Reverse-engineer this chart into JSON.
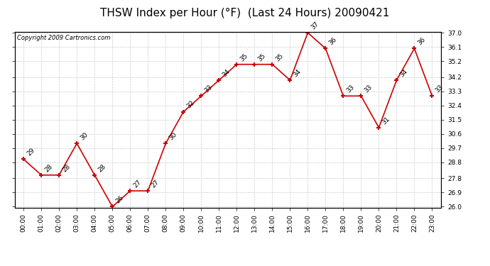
{
  "title": "THSW Index per Hour (°F)  (Last 24 Hours) 20090421",
  "copyright": "Copyright 2009 Cartronics.com",
  "hours": [
    "00:00",
    "01:00",
    "02:00",
    "03:00",
    "04:00",
    "05:00",
    "06:00",
    "07:00",
    "08:00",
    "09:00",
    "10:00",
    "11:00",
    "12:00",
    "13:00",
    "14:00",
    "15:00",
    "16:00",
    "17:00",
    "18:00",
    "19:00",
    "20:00",
    "21:00",
    "22:00",
    "23:00"
  ],
  "values": [
    29,
    28,
    28,
    30,
    28,
    26,
    27,
    27,
    30,
    32,
    33,
    34,
    35,
    35,
    35,
    34,
    37,
    36,
    33,
    33,
    31,
    34,
    36,
    33
  ],
  "line_color": "#cc0000",
  "marker_color": "#cc0000",
  "bg_color": "#ffffff",
  "grid_color": "#cccccc",
  "yticks": [
    26.0,
    26.9,
    27.8,
    28.8,
    29.7,
    30.6,
    31.5,
    32.4,
    33.3,
    34.2,
    35.2,
    36.1,
    37.0
  ],
  "title_fontsize": 11,
  "label_fontsize": 6.5,
  "annot_fontsize": 6.5,
  "copyright_fontsize": 6
}
